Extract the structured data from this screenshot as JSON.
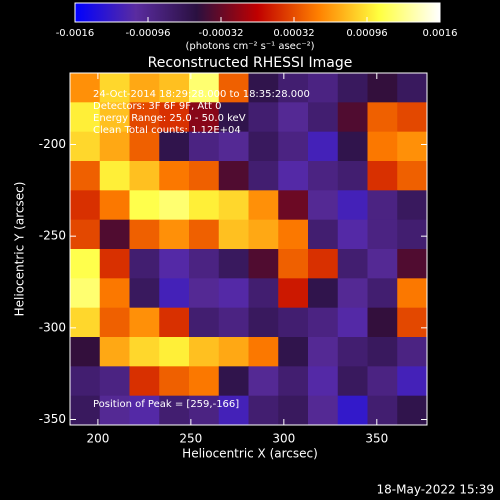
{
  "chart_data": {
    "type": "heatmap",
    "title": "Reconstructed RHESSI Image",
    "xlabel": "Heliocentric X (arcsec)",
    "ylabel": "Heliocentric Y (arcsec)",
    "colorbar_label": "(photons cm⁻² s⁻¹ asec⁻²)",
    "annotations": [
      "24-Oct-2014 18:29:28.000 to 18:35:28.000",
      "Detectors: 3F 6F 9F, Att 0",
      "Energy Range: 25.0 - 50.0 keV",
      "Clean     Total counts: 1.12E+04"
    ],
    "peak_label": "Position of Peak = [259,-166]",
    "timestamp": "18-May-2022 15:39",
    "xlim": [
      185,
      377
    ],
    "xticks": [
      200,
      250,
      300,
      350
    ],
    "ylim": [
      -353,
      -161
    ],
    "yticks": [
      -200,
      -250,
      -300,
      -350
    ],
    "clim": [
      -0.0016,
      0.0016
    ],
    "cticks": [
      -0.0016,
      -0.00096,
      -0.00032,
      0.00032,
      0.00096,
      0.0016
    ],
    "colormap": [
      "#0000ff",
      "#5a2ca0",
      "#2a1040",
      "#c00000",
      "#ff8000",
      "#ffff40",
      "#ffffff"
    ],
    "x": [
      193,
      209,
      225,
      241,
      257,
      273,
      289,
      305,
      321,
      337,
      353,
      369
    ],
    "y": [
      -169,
      -185,
      -201,
      -217,
      -233,
      -249,
      -265,
      -281,
      -297,
      -313,
      -329,
      -345
    ],
    "z": [
      [
        0.0006,
        0.0009,
        0.0007,
        0.0008,
        0.0012,
        0.0004,
        -0.0006,
        -0.0008,
        -0.0009,
        -0.0007,
        -0.0005,
        -0.0007
      ],
      [
        0.001,
        0.0008,
        0.0003,
        0.0002,
        -0.0002,
        -0.0006,
        -0.0008,
        -0.001,
        -0.0008,
        -0.0004,
        0.0004,
        0.0003
      ],
      [
        0.0009,
        0.0007,
        0.0004,
        -0.0006,
        -0.0009,
        -0.001,
        -0.0007,
        -0.0009,
        -0.0012,
        -0.0006,
        0.0005,
        0.0006
      ],
      [
        0.0004,
        0.001,
        0.0008,
        0.0005,
        0.0004,
        -0.0004,
        -0.0008,
        -0.0011,
        -0.0009,
        -0.0008,
        0.0002,
        0.0004
      ],
      [
        0.0002,
        0.0005,
        0.0011,
        0.0012,
        0.001,
        0.0009,
        0.0006,
        -0.0003,
        -0.001,
        -0.0012,
        -0.0009,
        -0.0007
      ],
      [
        0.0003,
        -0.0004,
        0.0004,
        0.0006,
        0.0004,
        0.0008,
        0.0007,
        0.0005,
        -0.0008,
        -0.0011,
        -0.0009,
        -0.0008
      ],
      [
        0.0011,
        0.0002,
        -0.0008,
        -0.0011,
        -0.0009,
        -0.0007,
        -0.0004,
        0.0004,
        0.0002,
        -0.0008,
        -0.001,
        -0.0004
      ],
      [
        0.0012,
        0.0005,
        -0.0007,
        -0.0012,
        -0.001,
        -0.0011,
        -0.0008,
        0.0001,
        -0.0006,
        -0.001,
        -0.0008,
        0.0005
      ],
      [
        0.0009,
        0.0004,
        0.0006,
        0.0002,
        -0.0008,
        -0.0009,
        -0.0007,
        -0.0008,
        -0.0009,
        -0.0011,
        -0.0005,
        0.0003
      ],
      [
        -0.0005,
        0.0007,
        0.0009,
        0.001,
        0.0008,
        0.0007,
        0.0005,
        -0.0006,
        -0.001,
        -0.0008,
        -0.0007,
        -0.0009
      ],
      [
        -0.0008,
        -0.0009,
        0.0002,
        0.0004,
        0.0005,
        -0.0006,
        -0.001,
        -0.0008,
        -0.0011,
        -0.0007,
        -0.0009,
        -0.0012
      ],
      [
        -0.0007,
        -0.001,
        -0.0011,
        -0.0008,
        -0.0009,
        -0.0012,
        -0.0008,
        -0.0007,
        -0.001,
        -0.0013,
        -0.0008,
        -0.0006
      ]
    ]
  }
}
